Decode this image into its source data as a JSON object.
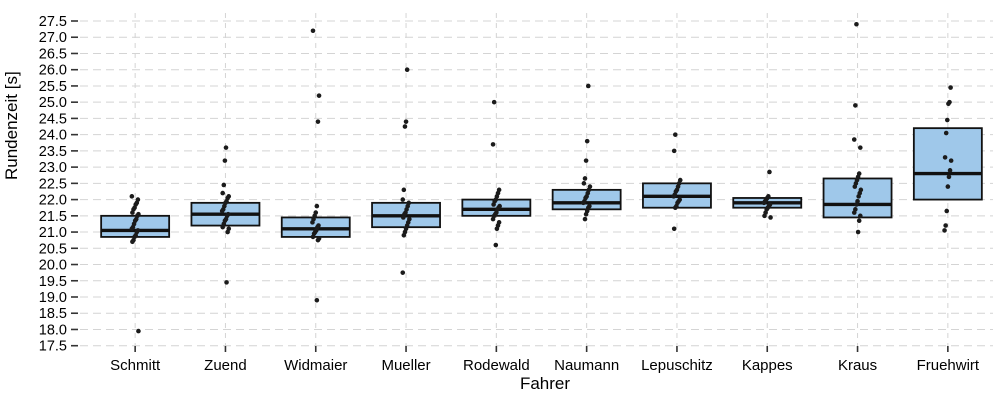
{
  "chart_data": {
    "type": "boxplot-with-jitter",
    "title": "",
    "xlabel": "Fahrer",
    "ylabel": "Rundenzeit [s]",
    "ylim": [
      17.5,
      27.5
    ],
    "ytick_step": 0.5,
    "grid": "dashed-both-axes",
    "legend": "none",
    "colors": {
      "box_fill": "#9FC8EA",
      "box_border": "#111111",
      "median_line": "#111111",
      "point": "#1b1b1b",
      "gridline": "#d4d4d4",
      "tick": "#333333",
      "text": "#000000",
      "background": "#ffffff"
    },
    "categories": [
      "Schmitt",
      "Zuend",
      "Widmaier",
      "Mueller",
      "Rodewald",
      "Naumann",
      "Lepuschitz",
      "Kappes",
      "Kraus",
      "Fruehwirt"
    ],
    "boxes": [
      {
        "driver": "Schmitt",
        "q1": 20.85,
        "median": 21.05,
        "q3": 21.5
      },
      {
        "driver": "Zuend",
        "q1": 21.2,
        "median": 21.55,
        "q3": 21.9
      },
      {
        "driver": "Widmaier",
        "q1": 20.85,
        "median": 21.1,
        "q3": 21.45
      },
      {
        "driver": "Mueller",
        "q1": 21.15,
        "median": 21.5,
        "q3": 21.9
      },
      {
        "driver": "Rodewald",
        "q1": 21.5,
        "median": 21.7,
        "q3": 22.0
      },
      {
        "driver": "Naumann",
        "q1": 21.7,
        "median": 21.9,
        "q3": 22.3
      },
      {
        "driver": "Lepuschitz",
        "q1": 21.75,
        "median": 22.1,
        "q3": 22.5
      },
      {
        "driver": "Kappes",
        "q1": 21.75,
        "median": 21.9,
        "q3": 22.05
      },
      {
        "driver": "Kraus",
        "q1": 21.45,
        "median": 21.85,
        "q3": 22.65
      },
      {
        "driver": "Fruehwirt",
        "q1": 22.0,
        "median": 22.8,
        "q3": 24.2
      }
    ],
    "points": [
      [
        22.1,
        22.0,
        21.9,
        21.85,
        21.75,
        21.7,
        21.6,
        21.55,
        21.5,
        21.4,
        21.35,
        21.25,
        21.15,
        21.1,
        21.05,
        21.0,
        20.9,
        20.85,
        20.75,
        20.7,
        17.95
      ],
      [
        23.6,
        23.2,
        22.45,
        22.2,
        22.1,
        22.05,
        21.95,
        21.9,
        21.8,
        21.7,
        21.65,
        21.55,
        21.5,
        21.4,
        21.35,
        21.25,
        21.15,
        21.1,
        21.0,
        19.45
      ],
      [
        27.2,
        25.2,
        24.4,
        21.8,
        21.6,
        21.5,
        21.4,
        21.3,
        21.2,
        21.15,
        21.05,
        21.0,
        20.95,
        20.85,
        20.8,
        20.75,
        18.9
      ],
      [
        26.0,
        24.4,
        24.25,
        22.3,
        22.0,
        21.9,
        21.8,
        21.7,
        21.6,
        21.55,
        21.45,
        21.4,
        21.3,
        21.2,
        21.1,
        21.0,
        20.9,
        19.75
      ],
      [
        25.0,
        23.7,
        22.3,
        22.2,
        22.1,
        22.0,
        21.95,
        21.85,
        21.8,
        21.75,
        21.7,
        21.6,
        21.55,
        21.5,
        21.4,
        21.3,
        21.2,
        21.1,
        20.6
      ],
      [
        25.5,
        23.8,
        23.2,
        22.65,
        22.5,
        22.4,
        22.3,
        22.2,
        22.1,
        22.05,
        21.95,
        21.9,
        21.8,
        21.75,
        21.65,
        21.55,
        21.4
      ],
      [
        24.0,
        23.5,
        22.6,
        22.5,
        22.4,
        22.3,
        22.25,
        22.15,
        22.1,
        22.0,
        21.95,
        21.9,
        21.8,
        21.75,
        21.1
      ],
      [
        22.85,
        22.1,
        22.05,
        22.0,
        21.95,
        21.9,
        21.85,
        21.8,
        21.75,
        21.7,
        21.6,
        21.5,
        21.45
      ],
      [
        27.4,
        24.9,
        23.85,
        23.6,
        22.8,
        22.7,
        22.6,
        22.5,
        22.4,
        22.3,
        22.2,
        22.1,
        21.95,
        21.85,
        21.7,
        21.6,
        21.5,
        21.35,
        21.0
      ],
      [
        25.45,
        25.0,
        24.95,
        24.45,
        24.05,
        23.3,
        23.2,
        22.9,
        22.7,
        22.4,
        21.65,
        21.2,
        21.05
      ]
    ]
  }
}
